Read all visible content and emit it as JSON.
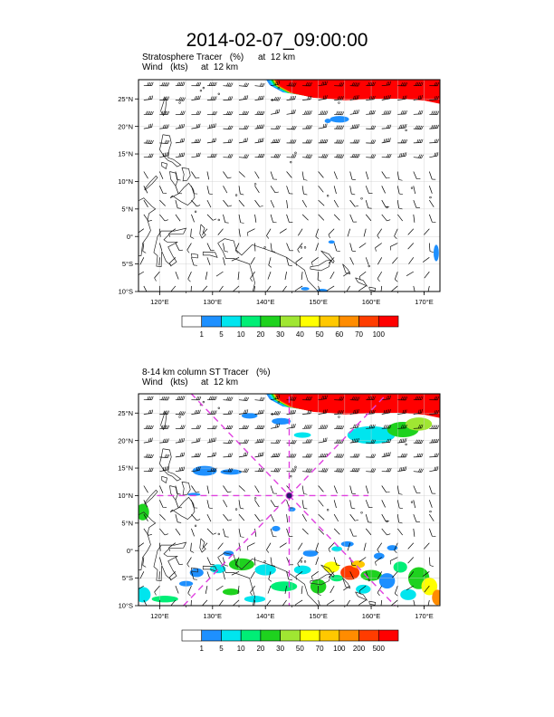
{
  "title": "2014-02-07_09:00:00",
  "panels": [
    {
      "name": "top",
      "line1_left": "Stratosphere Tracer   (%)",
      "line1_right": "at  12 km",
      "line2_left": "Wind   (kts)",
      "line2_right": "at  12 km",
      "lon_ticks": [
        "120°E",
        "130°E",
        "140°E",
        "150°E",
        "160°E",
        "170°E"
      ],
      "lat_ticks": [
        "25°N",
        "20°N",
        "15°N",
        "10°N",
        "5°N",
        "0°",
        "5°S",
        "10°S"
      ],
      "colorbar": {
        "labels": [
          "1",
          "5",
          "10",
          "20",
          "30",
          "40",
          "50",
          "60",
          "70",
          "100"
        ],
        "colors": [
          "#ffffff",
          "#1e90ff",
          "#00e5ee",
          "#00ee76",
          "#1ed21e",
          "#a0e632",
          "#ffff00",
          "#ffc800",
          "#ff8c00",
          "#ff3c00",
          "#ff0000"
        ]
      }
    },
    {
      "name": "bottom",
      "line1_left": "8-14 km column ST Tracer   (%)",
      "line1_right": "",
      "line2_left": "Wind   (kts)",
      "line2_right": "at  12 km",
      "lon_ticks": [
        "120°E",
        "130°E",
        "140°E",
        "150°E",
        "160°E",
        "170°E"
      ],
      "lat_ticks": [
        "25°N",
        "20°N",
        "15°N",
        "10°N",
        "5°N",
        "0°",
        "5°S",
        "10°S"
      ],
      "colorbar": {
        "labels": [
          "1",
          "5",
          "10",
          "20",
          "30",
          "50",
          "70",
          "100",
          "200",
          "500"
        ],
        "colors": [
          "#ffffff",
          "#1e90ff",
          "#00e5ee",
          "#00ee76",
          "#1ed21e",
          "#a0e632",
          "#ffff00",
          "#ffc800",
          "#ff8c00",
          "#ff3c00",
          "#ff0000"
        ]
      }
    }
  ],
  "map_data": {
    "lon_range": [
      116,
      173
    ],
    "lat_range": [
      -10,
      28.5
    ],
    "grid_step_deg": 5,
    "marker": {
      "lon": 144.5,
      "lat": 10
    },
    "colors": {
      "coast": "#222222",
      "grid": "#cccccc",
      "marker_lines": "#e040e0",
      "barb": "#000000"
    }
  }
}
